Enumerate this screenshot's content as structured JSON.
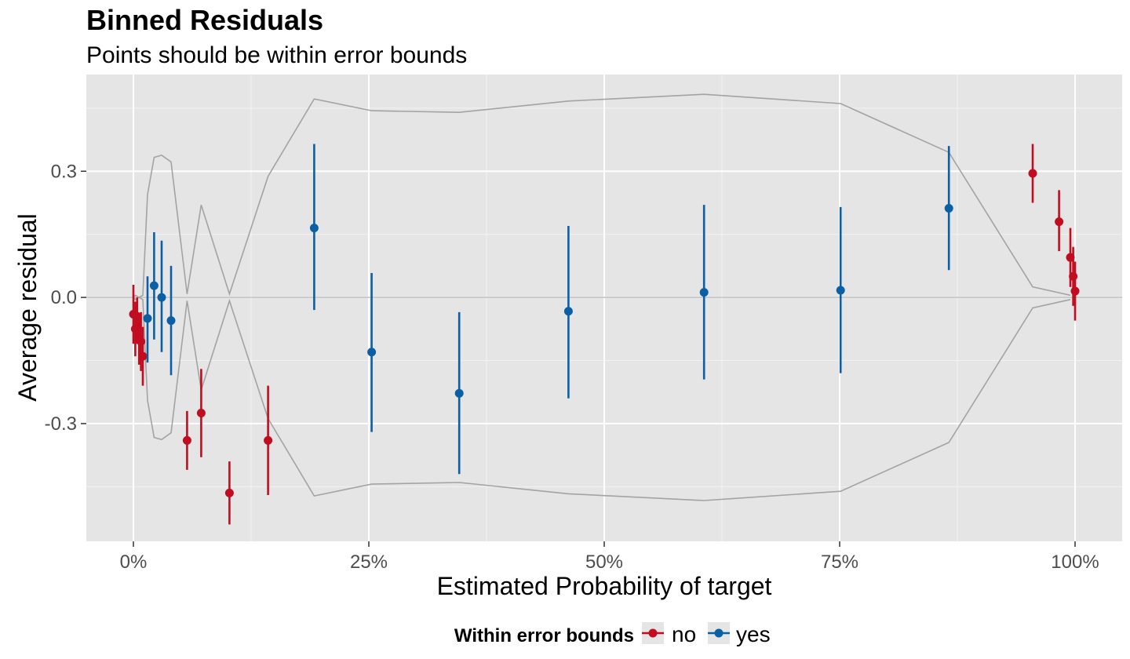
{
  "chart_data": {
    "type": "scatter",
    "title": "Binned Residuals",
    "subtitle": "Points should be within error bounds",
    "xlabel": "Estimated Probability of target",
    "ylabel": "Average residual",
    "xlim": [
      -0.05,
      1.05
    ],
    "ylim": [
      -0.58,
      0.53
    ],
    "x_ticks": [
      0,
      0.25,
      0.5,
      0.75,
      1.0
    ],
    "x_tick_labels": [
      "0%",
      "25%",
      "50%",
      "75%",
      "100%"
    ],
    "y_ticks": [
      -0.3,
      0,
      0.3
    ],
    "y_tick_labels": [
      "-0.3",
      "0.0",
      "0.3"
    ],
    "grid": true,
    "legend": {
      "title": "Within error bounds",
      "position": "bottom",
      "entries": [
        {
          "label": "no",
          "color": "#c20d20"
        },
        {
          "label": "yes",
          "color": "#0b5fa5"
        }
      ]
    },
    "error_bounds_upper": {
      "x": [
        0.0,
        0.002,
        0.006,
        0.01,
        0.015,
        0.022,
        0.03,
        0.04,
        0.057,
        0.072,
        0.102,
        0.143,
        0.192,
        0.253,
        0.346,
        0.462,
        0.606,
        0.751,
        0.866,
        0.955,
        0.995
      ],
      "y": [
        0.0,
        0.005,
        0.0,
        0.005,
        0.245,
        0.333,
        0.338,
        0.322,
        0.008,
        0.22,
        0.008,
        0.288,
        0.472,
        0.444,
        0.44,
        0.467,
        0.483,
        0.461,
        0.345,
        0.025,
        0.005
      ]
    },
    "error_bounds_lower": {
      "x": [
        0.0,
        0.002,
        0.006,
        0.01,
        0.015,
        0.022,
        0.03,
        0.04,
        0.057,
        0.072,
        0.102,
        0.143,
        0.192,
        0.253,
        0.346,
        0.462,
        0.606,
        0.751,
        0.866,
        0.955,
        0.995
      ],
      "y": [
        0.0,
        -0.005,
        0.0,
        -0.005,
        -0.245,
        -0.333,
        -0.338,
        -0.322,
        -0.008,
        -0.22,
        -0.008,
        -0.288,
        -0.472,
        -0.444,
        -0.44,
        -0.467,
        -0.483,
        -0.461,
        -0.345,
        -0.025,
        -0.005
      ]
    },
    "series": [
      {
        "name": "no",
        "color": "#c20d20",
        "points": [
          {
            "x": 0.0,
            "y": -0.04,
            "lo": -0.11,
            "hi": 0.03
          },
          {
            "x": 0.002,
            "y": -0.075,
            "lo": -0.14,
            "hi": -0.01
          },
          {
            "x": 0.004,
            "y": -0.045,
            "lo": -0.11,
            "hi": 0.0
          },
          {
            "x": 0.006,
            "y": -0.1,
            "lo": -0.16,
            "hi": -0.045
          },
          {
            "x": 0.008,
            "y": -0.105,
            "lo": -0.175,
            "hi": -0.035
          },
          {
            "x": 0.01,
            "y": -0.14,
            "lo": -0.21,
            "hi": -0.07
          },
          {
            "x": 0.057,
            "y": -0.34,
            "lo": -0.41,
            "hi": -0.27
          },
          {
            "x": 0.072,
            "y": -0.275,
            "lo": -0.38,
            "hi": -0.17
          },
          {
            "x": 0.102,
            "y": -0.465,
            "lo": -0.54,
            "hi": -0.39
          },
          {
            "x": 0.143,
            "y": -0.34,
            "lo": -0.47,
            "hi": -0.21
          },
          {
            "x": 0.955,
            "y": 0.295,
            "lo": 0.225,
            "hi": 0.365
          },
          {
            "x": 0.983,
            "y": 0.18,
            "lo": 0.11,
            "hi": 0.255
          },
          {
            "x": 0.995,
            "y": 0.095,
            "lo": 0.025,
            "hi": 0.165
          },
          {
            "x": 0.998,
            "y": 0.05,
            "lo": -0.02,
            "hi": 0.12
          },
          {
            "x": 1.0,
            "y": 0.015,
            "lo": -0.055,
            "hi": 0.085
          }
        ]
      },
      {
        "name": "yes",
        "color": "#0b5fa5",
        "points": [
          {
            "x": 0.015,
            "y": -0.05,
            "lo": -0.155,
            "hi": 0.05
          },
          {
            "x": 0.022,
            "y": 0.028,
            "lo": -0.1,
            "hi": 0.155
          },
          {
            "x": 0.03,
            "y": 0.0,
            "lo": -0.13,
            "hi": 0.135
          },
          {
            "x": 0.04,
            "y": -0.055,
            "lo": -0.185,
            "hi": 0.075
          },
          {
            "x": 0.192,
            "y": 0.165,
            "lo": -0.03,
            "hi": 0.365
          },
          {
            "x": 0.253,
            "y": -0.13,
            "lo": -0.32,
            "hi": 0.058
          },
          {
            "x": 0.346,
            "y": -0.228,
            "lo": -0.42,
            "hi": -0.035
          },
          {
            "x": 0.462,
            "y": -0.033,
            "lo": -0.24,
            "hi": 0.17
          },
          {
            "x": 0.606,
            "y": 0.012,
            "lo": -0.195,
            "hi": 0.22
          },
          {
            "x": 0.751,
            "y": 0.017,
            "lo": -0.18,
            "hi": 0.215
          },
          {
            "x": 0.866,
            "y": 0.212,
            "lo": 0.065,
            "hi": 0.36
          }
        ]
      }
    ]
  }
}
